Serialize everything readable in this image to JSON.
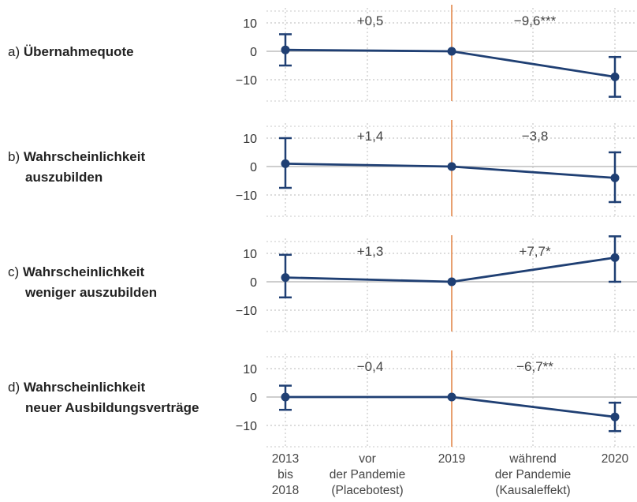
{
  "chart_data": {
    "type": "line",
    "x_ticks": [
      "2013 bis 2018",
      "vor der Pandemie (Placebotest)",
      "2019",
      "während der Pandemie (Kausaleffekt)",
      "2020"
    ],
    "x_tick_lines": [
      [
        "2013",
        "bis",
        "2018"
      ],
      [
        "vor",
        "der Pandemie",
        "(Placebotest)"
      ],
      [
        "2019"
      ],
      [
        "während",
        "der Pandemie",
        "(Kausaleffekt)"
      ],
      [
        "2020"
      ]
    ],
    "ylim": [
      -17,
      17
    ],
    "y_ticks": [
      10,
      0,
      -10
    ],
    "y_tick_labels": [
      "10",
      "0",
      "−10"
    ],
    "grid": true,
    "vertical_line_at": "2019",
    "colors": {
      "series": "#1f3f73",
      "marker_line": "#e8a070",
      "grid": "#c8c8c8",
      "zero_line": "#bdbdbd"
    },
    "panels": [
      {
        "letter": "a)",
        "label_lines": [
          "Übernahmequote"
        ],
        "effects": [
          "+0,5",
          "−9,6***"
        ],
        "points": [
          {
            "x": "2013 bis 2018",
            "y": 0.5,
            "ci": [
              -5,
              6
            ]
          },
          {
            "x": "2019",
            "y": 0,
            "ci": null
          },
          {
            "x": "2020",
            "y": -9,
            "ci": [
              -16,
              -2
            ]
          }
        ]
      },
      {
        "letter": "b)",
        "label_lines": [
          "Wahrscheinlichkeit",
          "auszubilden"
        ],
        "effects": [
          "+1,4",
          "−3,8"
        ],
        "points": [
          {
            "x": "2013 bis 2018",
            "y": 1,
            "ci": [
              -7.5,
              10
            ]
          },
          {
            "x": "2019",
            "y": 0,
            "ci": null
          },
          {
            "x": "2020",
            "y": -4,
            "ci": [
              -12.5,
              5
            ]
          }
        ]
      },
      {
        "letter": "c)",
        "label_lines": [
          "Wahrscheinlichkeit",
          "weniger auszubilden"
        ],
        "effects": [
          "+1,3",
          "+7,7*"
        ],
        "points": [
          {
            "x": "2013 bis 2018",
            "y": 1.5,
            "ci": [
              -5.5,
              9.5
            ]
          },
          {
            "x": "2019",
            "y": 0,
            "ci": null
          },
          {
            "x": "2020",
            "y": 8.5,
            "ci": [
              0,
              16
            ]
          }
        ]
      },
      {
        "letter": "d)",
        "label_lines": [
          "Wahrscheinlichkeit",
          "neuer Ausbildungsverträge"
        ],
        "effects": [
          "−0,4",
          "−6,7**"
        ],
        "points": [
          {
            "x": "2013 bis 2018",
            "y": 0,
            "ci": [
              -4.5,
              4
            ]
          },
          {
            "x": "2019",
            "y": 0,
            "ci": null
          },
          {
            "x": "2020",
            "y": -7,
            "ci": [
              -12,
              -2
            ]
          }
        ]
      }
    ]
  }
}
